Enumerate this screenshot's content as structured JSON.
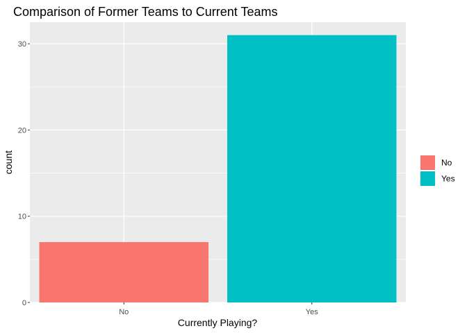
{
  "chart_data": {
    "type": "bar",
    "title": "Comparison of Former Teams to Current Teams",
    "xlabel": "Currently Playing?",
    "ylabel": "count",
    "categories": [
      "No",
      "Yes"
    ],
    "values": [
      7,
      31
    ],
    "ylim": [
      0,
      32.5
    ],
    "yticks": [
      0,
      10,
      20,
      30
    ],
    "grid": true,
    "legend": {
      "position": "right",
      "entries": [
        {
          "label": "No",
          "color": "#F8766D"
        },
        {
          "label": "Yes",
          "color": "#00BFC4"
        }
      ]
    },
    "colors": [
      "#F8766D",
      "#00BFC4"
    ],
    "panel_background": "#EBEBEB",
    "grid_color": "#FFFFFF"
  }
}
